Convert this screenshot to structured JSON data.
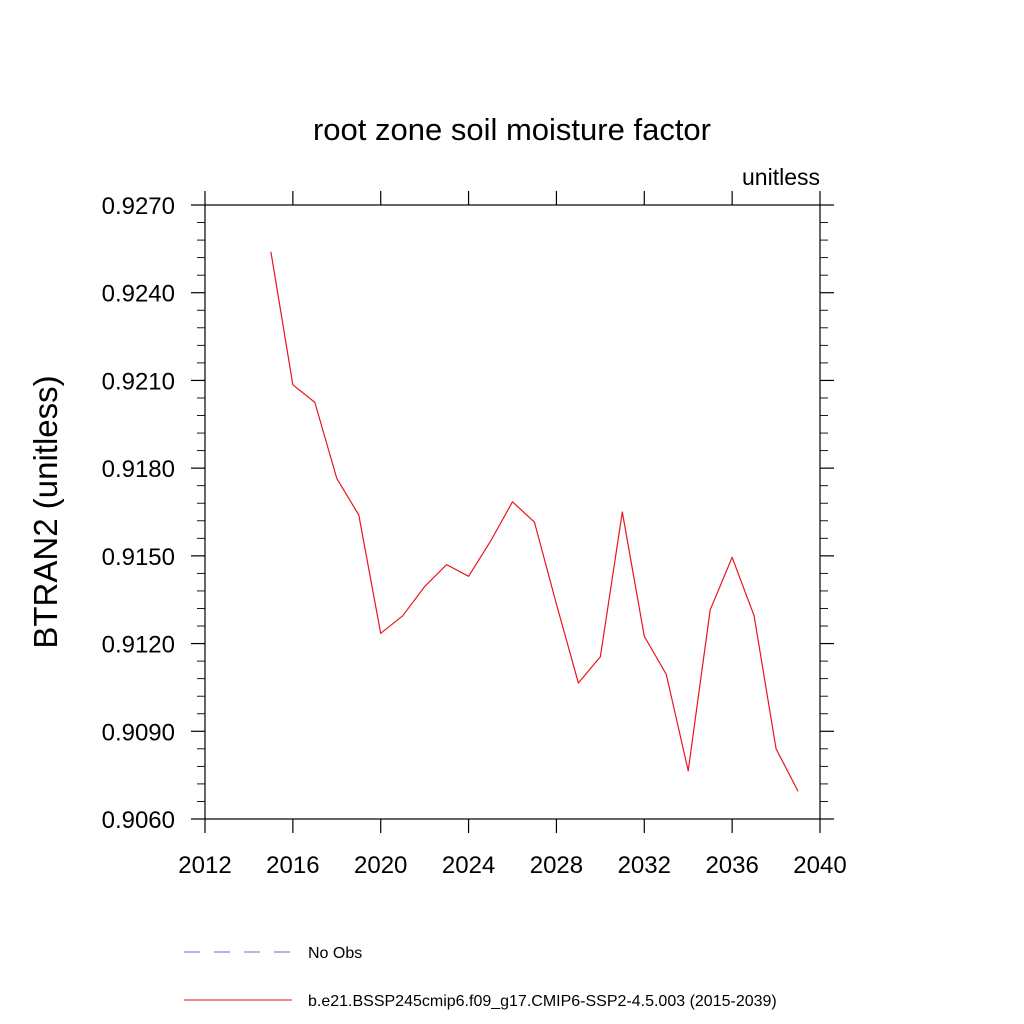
{
  "chart_data": {
    "type": "line",
    "title": "root zone soil moisture factor",
    "units_label": "unitless",
    "ylabel": "BTRAN2  (unitless)",
    "xlabel": "",
    "xlim": [
      2012,
      2040
    ],
    "ylim": [
      0.906,
      0.927
    ],
    "x_ticks": [
      2012,
      2016,
      2020,
      2024,
      2028,
      2032,
      2036,
      2040
    ],
    "x_tick_labels": [
      "2012",
      "2016",
      "2020",
      "2024",
      "2028",
      "2032",
      "2036",
      "2040"
    ],
    "y_ticks": [
      0.906,
      0.909,
      0.912,
      0.915,
      0.918,
      0.921,
      0.924,
      0.927
    ],
    "y_tick_labels": [
      "0.9060",
      "0.9090",
      "0.9120",
      "0.9150",
      "0.9180",
      "0.9210",
      "0.9240",
      "0.9270"
    ],
    "grid": false,
    "legend_position": "bottom",
    "legend": [
      {
        "label": "No Obs",
        "color": "#6a6ad0",
        "style": "dashed"
      },
      {
        "label": "b.e21.BSSP245cmip6.f09_g17.CMIP6-SSP2-4.5.003 (2015-2039)",
        "color": "#e8141c",
        "style": "solid"
      }
    ],
    "series": [
      {
        "name": "b.e21.BSSP245cmip6.f09_g17.CMIP6-SSP2-4.5.003 (2015-2039)",
        "color": "#e8141c",
        "x": [
          2015,
          2016,
          2017,
          2018,
          2019,
          2020,
          2021,
          2022,
          2023,
          2024,
          2025,
          2026,
          2027,
          2028,
          2029,
          2030,
          2031,
          2032,
          2033,
          2034,
          2035,
          2036,
          2037,
          2038,
          2039
        ],
        "y": [
          0.9254,
          0.92085,
          0.92025,
          0.91765,
          0.9164,
          0.91235,
          0.91295,
          0.91395,
          0.9147,
          0.9143,
          0.9155,
          0.91685,
          0.91615,
          0.91335,
          0.91065,
          0.91155,
          0.9165,
          0.91225,
          0.91095,
          0.90765,
          0.91315,
          0.91495,
          0.91295,
          0.9084,
          0.90695
        ]
      }
    ]
  }
}
